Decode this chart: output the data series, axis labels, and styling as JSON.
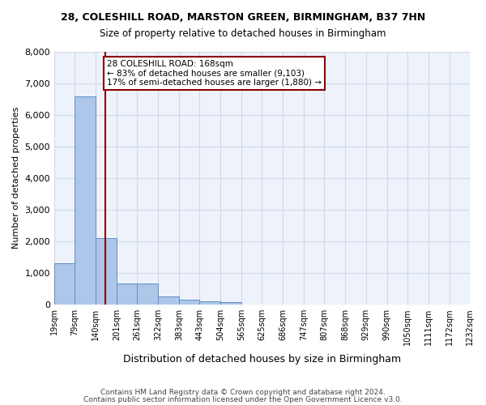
{
  "title1": "28, COLESHILL ROAD, MARSTON GREEN, BIRMINGHAM, B37 7HN",
  "title2": "Size of property relative to detached houses in Birmingham",
  "xlabel": "Distribution of detached houses by size in Birmingham",
  "ylabel": "Number of detached properties",
  "bin_labels": [
    "19sqm",
    "79sqm",
    "140sqm",
    "201sqm",
    "261sqm",
    "322sqm",
    "383sqm",
    "443sqm",
    "504sqm",
    "565sqm",
    "625sqm",
    "686sqm",
    "747sqm",
    "807sqm",
    "868sqm",
    "929sqm",
    "990sqm",
    "1050sqm",
    "1111sqm",
    "1172sqm",
    "1232sqm"
  ],
  "bin_edges": [
    19,
    79,
    140,
    201,
    261,
    322,
    383,
    443,
    504,
    565,
    625,
    686,
    747,
    807,
    868,
    929,
    990,
    1050,
    1111,
    1172,
    1232
  ],
  "bar_heights": [
    1300,
    6600,
    2100,
    650,
    650,
    250,
    130,
    100,
    70,
    0,
    0,
    0,
    0,
    0,
    0,
    0,
    0,
    0,
    0,
    0
  ],
  "bar_color": "#aec6e8",
  "bar_edge_color": "#5b8fc9",
  "property_line_x": 168,
  "property_line_color": "#8b0000",
  "annotation_text": "28 COLESHILL ROAD: 168sqm\n← 83% of detached houses are smaller (9,103)\n17% of semi-detached houses are larger (1,880) →",
  "annotation_box_color": "#ffffff",
  "annotation_box_edge_color": "#8b0000",
  "ylim": [
    0,
    8000
  ],
  "yticks": [
    0,
    1000,
    2000,
    3000,
    4000,
    5000,
    6000,
    7000,
    8000
  ],
  "grid_color": "#d0d8e8",
  "background_color": "#eef2fa",
  "footnote1": "Contains HM Land Registry data © Crown copyright and database right 2024.",
  "footnote2": "Contains public sector information licensed under the Open Government Licence v3.0."
}
